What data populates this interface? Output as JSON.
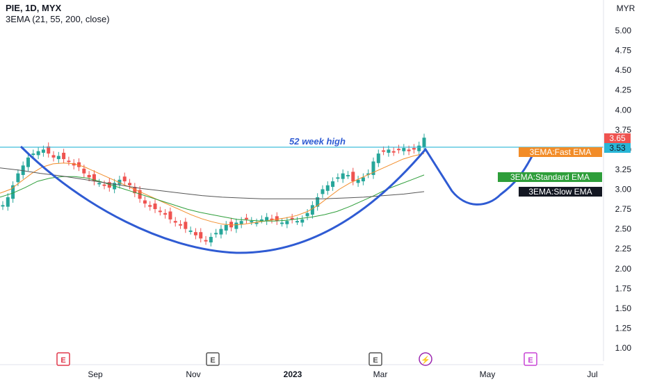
{
  "header": {
    "title": "PIE, 1D, MYX",
    "indicator": "3EMA (21, 55, 200, close)"
  },
  "currency": "MYR",
  "annotation": "52 week high",
  "markers": {
    "price_last": "3.65",
    "price_line": "3.53",
    "fast_ema": "3EMA:Fast EMA",
    "standard_ema": "3EMA:Standard EMA",
    "slow_ema": "3EMA:Slow EMA"
  },
  "event_badges": [
    {
      "label": "E",
      "color": "#e0384b"
    },
    {
      "label": "E",
      "color": "#555555"
    },
    {
      "label": "E",
      "color": "#555555"
    },
    {
      "label": "⚡",
      "color": "#9c27b0"
    },
    {
      "label": "E",
      "color": "#c845d6"
    }
  ],
  "colors": {
    "up": "#26a69a",
    "down": "#ef5350",
    "fast_ema": "#f28c28",
    "standard_ema": "#2e9e3a",
    "slow_ema": "#555555",
    "cup_line": "#2f5bd3",
    "resistance": "#29b6d6",
    "price_tag": "#ef5350"
  },
  "chart_data": {
    "type": "candlestick",
    "title": "PIE, 1D, MYX",
    "ylabel": "MYR",
    "y_ticks": [
      "5.00",
      "4.75",
      "4.50",
      "4.25",
      "4.00",
      "3.75",
      "3.50",
      "3.25",
      "3.00",
      "2.75",
      "2.50",
      "2.25",
      "2.00",
      "1.75",
      "1.50",
      "1.25",
      "1.00"
    ],
    "x_ticks": [
      "Sep",
      "Nov",
      "2023",
      "Mar",
      "May",
      "Jul"
    ],
    "ylim": [
      0.9,
      5.25
    ],
    "resistance_level": 3.53,
    "last_price": 3.65,
    "close_series": [
      2.8,
      2.9,
      3.05,
      3.2,
      3.3,
      3.4,
      3.45,
      3.48,
      3.5,
      3.45,
      3.4,
      3.42,
      3.38,
      3.35,
      3.3,
      3.28,
      3.2,
      3.15,
      3.1,
      3.08,
      3.05,
      3.02,
      3.08,
      3.12,
      3.1,
      3.05,
      2.95,
      2.88,
      2.82,
      2.78,
      2.75,
      2.72,
      2.68,
      2.62,
      2.58,
      2.55,
      2.5,
      2.48,
      2.42,
      2.38,
      2.35,
      2.4,
      2.45,
      2.5,
      2.55,
      2.52,
      2.58,
      2.6,
      2.62,
      2.6,
      2.58,
      2.62,
      2.65,
      2.62,
      2.6,
      2.58,
      2.6,
      2.62,
      2.6,
      2.62,
      2.7,
      2.8,
      2.9,
      3.0,
      3.05,
      3.1,
      3.15,
      3.2,
      3.18,
      3.1,
      3.12,
      3.15,
      3.2,
      3.35,
      3.45,
      3.48,
      3.5,
      3.47,
      3.5,
      3.52,
      3.48,
      3.5,
      3.55,
      3.65
    ],
    "ema_fast": [
      2.95,
      3.0,
      3.1,
      3.2,
      3.28,
      3.32,
      3.33,
      3.32,
      3.28,
      3.22,
      3.16,
      3.1,
      3.04,
      2.98,
      2.92,
      2.86,
      2.8,
      2.74,
      2.68,
      2.63,
      2.59,
      2.56,
      2.55,
      2.56,
      2.58,
      2.6,
      2.62,
      2.64,
      2.67,
      2.72,
      2.8,
      2.9,
      3.0,
      3.08,
      3.14,
      3.2,
      3.26,
      3.32,
      3.38,
      3.42,
      3.45
    ],
    "ema_standard": [
      2.9,
      2.95,
      3.02,
      3.1,
      3.14,
      3.16,
      3.16,
      3.14,
      3.1,
      3.05,
      3.0,
      2.95,
      2.9,
      2.85,
      2.8,
      2.75,
      2.71,
      2.68,
      2.65,
      2.62,
      2.61,
      2.6,
      2.6,
      2.61,
      2.63,
      2.65,
      2.68,
      2.72,
      2.78,
      2.85,
      2.92,
      3.0,
      3.06,
      3.12,
      3.18
    ],
    "ema_slow": [
      3.27,
      3.24,
      3.2,
      3.17,
      3.13,
      3.09,
      3.05,
      3.01,
      2.98,
      2.95,
      2.92,
      2.9,
      2.89,
      2.88,
      2.88,
      2.88,
      2.88,
      2.89,
      2.9,
      2.92,
      2.94,
      2.97
    ]
  }
}
